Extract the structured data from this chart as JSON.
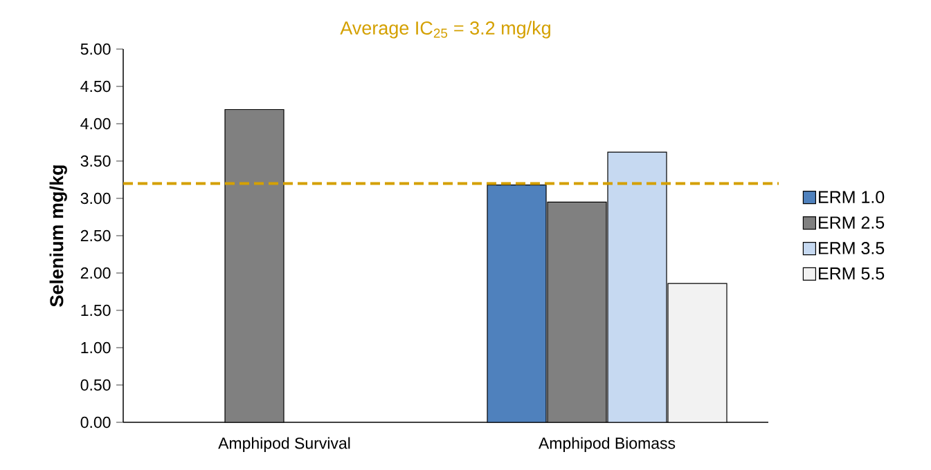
{
  "chart_data": {
    "type": "bar",
    "ylabel": "Selenium mg/kg",
    "categories": [
      "Amphipod Survival",
      "Amphipod Biomass"
    ],
    "series": [
      {
        "name": "ERM 1.0",
        "color": "#4f81bd",
        "values": [
          null,
          3.18
        ]
      },
      {
        "name": "ERM 2.5",
        "color": "#808080",
        "values": [
          4.19,
          2.95
        ]
      },
      {
        "name": "ERM 3.5",
        "color": "#c6d9f1",
        "values": [
          null,
          3.62
        ]
      },
      {
        "name": "ERM 5.5",
        "color": "#f2f2f2",
        "values": [
          null,
          1.86
        ]
      }
    ],
    "ylim": [
      0,
      5
    ],
    "yticks": [
      {
        "value": 0,
        "label": "0.00"
      },
      {
        "value": 0.5,
        "label": "0.50"
      },
      {
        "value": 1,
        "label": "1.00"
      },
      {
        "value": 1.5,
        "label": "1.50"
      },
      {
        "value": 2,
        "label": "2.00"
      },
      {
        "value": 2.5,
        "label": "2.50"
      },
      {
        "value": 3,
        "label": "3.00"
      },
      {
        "value": 3.5,
        "label": "3.50"
      },
      {
        "value": 4,
        "label": "4.00"
      },
      {
        "value": 4.5,
        "label": "4.50"
      },
      {
        "value": 5,
        "label": "5.00"
      }
    ],
    "ref_lines": [
      {
        "axis": "y",
        "value": 3.2,
        "label": "Average IC$_{25}$ = 3.2 mg/kg",
        "color": "#d4a000",
        "line_style": "dashed"
      }
    ],
    "legend": "right"
  }
}
